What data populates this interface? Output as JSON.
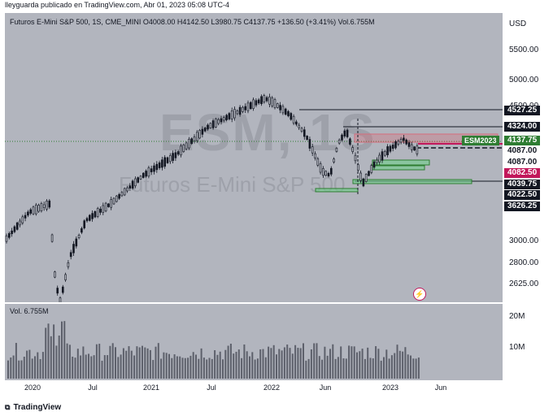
{
  "header": {
    "publisher": "lleyguarda publicado en TradingView.com, Abr 01, 2023 05:08 UTC-4"
  },
  "symbol_line": "Futuros E-Mini S&P 500, 1S, CME_MINI  O4008.00  H4142.50  L3980.75  C4137.75  +136.50 (+3.41%)  Vol.6.755M",
  "watermark": {
    "ticker": "ESM, 1S",
    "name": "Futuros E-Mini S&P 500"
  },
  "currency": "USD",
  "price_axis": {
    "ticks": [
      "5500.00",
      "5000.00",
      "4500.00",
      "3000.00",
      "2800.00",
      "2625.00"
    ],
    "tags": [
      {
        "label": "4527.25",
        "bg": "#131722",
        "fg": "#ffffff"
      },
      {
        "label": "4324.00",
        "bg": "#131722",
        "fg": "#ffffff"
      },
      {
        "label": "4137.75",
        "bg": "#2e7d32",
        "fg": "#ffffff"
      },
      {
        "label": "4087.00",
        "bg": "#ffffff",
        "fg": "#131722"
      },
      {
        "label": "4087.00",
        "bg": "#ffffff",
        "fg": "#131722"
      },
      {
        "label": "4082.50",
        "bg": "#c2185b",
        "fg": "#ffffff"
      },
      {
        "label": "4039.75",
        "bg": "#131722",
        "fg": "#ffffff"
      },
      {
        "label": "4022.50",
        "bg": "#131722",
        "fg": "#ffffff"
      },
      {
        "label": "3626.25",
        "bg": "#131722",
        "fg": "#ffffff"
      }
    ]
  },
  "esm_tag": "ESM2023",
  "volume": {
    "label": "Vol.  6.755M",
    "ticks": [
      "20M",
      "10M"
    ]
  },
  "time_axis": [
    "2020",
    "Jul",
    "2021",
    "Jul",
    "2022",
    "Jun",
    "2023",
    "Jun"
  ],
  "footer": {
    "brand": "TradingView"
  },
  "colors": {
    "background": "#b2b5be",
    "candle": "#131722",
    "zone": "#6fd18a",
    "resistance": "#d56c7c",
    "accent": "#2e7d32"
  }
}
